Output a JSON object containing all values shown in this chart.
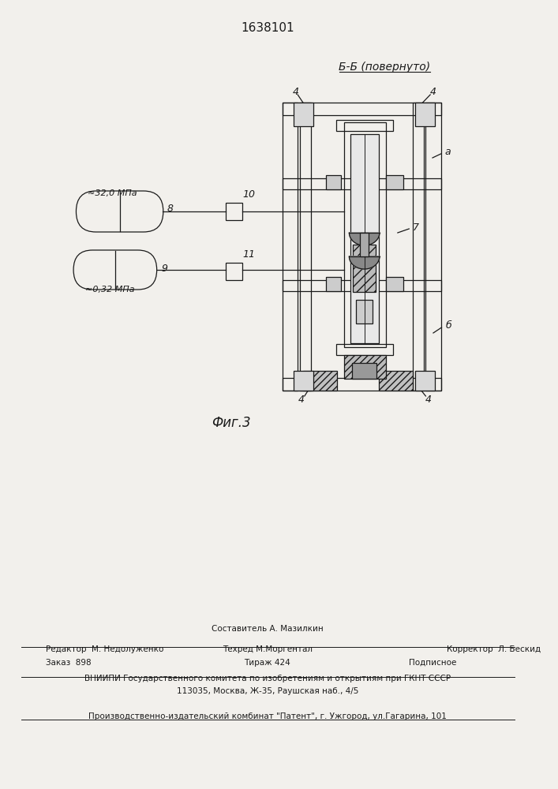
{
  "title": "1638101",
  "section_label": "Б-Б (повернуто)",
  "fig_label": "Фиг.3",
  "bg_color": "#f2f0ec",
  "line_color": "#1a1a1a",
  "footer_line1_left": "Редактор  М. Недолуженко",
  "footer_line1_center1": "Составитель А. Мазилкин",
  "footer_line1_center2": "Техред М.Моргентал",
  "footer_line1_right": "Корректор  Л. Бескид",
  "footer_line2_left": "Заказ  898",
  "footer_line2_center": "Тираж 424",
  "footer_line2_right": "Подписное",
  "footer_line3": "ВНИИПИ Государственного комитета по изобретениям и открытиям при ГКНТ СССР",
  "footer_line4": "113035, Москва, Ж-35, Раушская наб., 4/5",
  "footer_line5": "Производственно-издательский комбинат \"Патент\", г. Ужгород, ул.Гагарина, 101"
}
